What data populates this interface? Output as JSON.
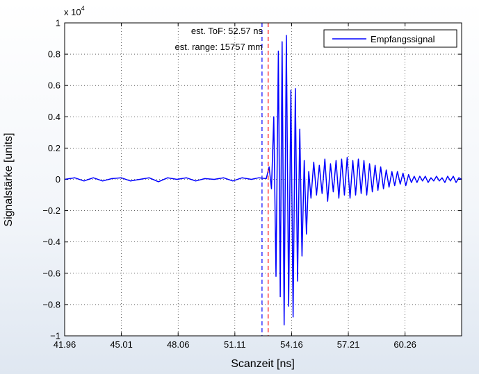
{
  "chart_data": {
    "type": "line",
    "title": "",
    "xlabel": "Scanzeit [ns]",
    "ylabel": "Signalstärke [units]",
    "exponent_label": "x 10",
    "exponent_power": "4",
    "xlim": [
      41.96,
      63.3
    ],
    "ylim": [
      -1,
      1
    ],
    "y_scale_factor": 10000,
    "x_ticks": [
      41.96,
      45.01,
      48.06,
      51.11,
      54.16,
      57.21,
      60.26
    ],
    "x_tick_labels": [
      "41.96",
      "45.01",
      "48.06",
      "51.11",
      "54.16",
      "57.21",
      "60.26"
    ],
    "y_ticks": [
      -1,
      -0.8,
      -0.6,
      -0.4,
      -0.2,
      0,
      0.2,
      0.4,
      0.6,
      0.8,
      1
    ],
    "y_tick_labels": [
      "−1",
      "−0.8",
      "−0.6",
      "−0.4",
      "−0.2",
      "0",
      "0.2",
      "0.4",
      "0.6",
      "0.8",
      "1"
    ],
    "grid": true,
    "legend_position": "top-right",
    "series": [
      {
        "name": "Empfangssignal",
        "color": "#0000ff",
        "x": [
          41.96,
          42.5,
          43.0,
          43.5,
          44.0,
          44.5,
          45.0,
          45.5,
          46.0,
          46.5,
          47.0,
          47.5,
          48.0,
          48.5,
          49.0,
          49.5,
          50.0,
          50.5,
          51.0,
          51.5,
          52.0,
          52.4,
          52.8,
          52.95,
          53.08,
          53.2,
          53.32,
          53.45,
          53.55,
          53.65,
          53.76,
          53.88,
          54.0,
          54.12,
          54.24,
          54.36,
          54.48,
          54.6,
          54.72,
          54.84,
          54.96,
          55.08,
          55.2,
          55.35,
          55.5,
          55.65,
          55.8,
          55.95,
          56.1,
          56.25,
          56.4,
          56.55,
          56.7,
          56.85,
          57.0,
          57.15,
          57.3,
          57.45,
          57.6,
          57.75,
          57.9,
          58.05,
          58.2,
          58.35,
          58.5,
          58.65,
          58.8,
          58.95,
          59.1,
          59.25,
          59.4,
          59.55,
          59.7,
          59.85,
          60.0,
          60.15,
          60.3,
          60.45,
          60.6,
          60.75,
          60.9,
          61.05,
          61.2,
          61.35,
          61.5,
          61.65,
          61.8,
          61.95,
          62.1,
          62.25,
          62.4,
          62.55,
          62.7,
          62.85,
          63.0,
          63.15,
          63.3
        ],
        "values": [
          0.0,
          0.01,
          -0.01,
          0.01,
          -0.01,
          0.005,
          0.01,
          -0.01,
          0.0,
          0.01,
          -0.015,
          0.01,
          0.0,
          0.01,
          -0.01,
          0.005,
          0.0,
          0.01,
          -0.01,
          0.01,
          0.0,
          0.01,
          0.005,
          0.08,
          -0.06,
          0.4,
          -0.62,
          0.82,
          -0.75,
          0.88,
          -0.93,
          0.92,
          -0.81,
          0.57,
          -0.88,
          0.58,
          -0.65,
          0.32,
          -0.49,
          0.12,
          -0.35,
          0.05,
          -0.12,
          0.11,
          -0.1,
          0.09,
          -0.09,
          0.13,
          -0.14,
          0.1,
          -0.08,
          0.12,
          -0.12,
          0.13,
          -0.1,
          0.14,
          -0.12,
          0.12,
          -0.1,
          0.13,
          -0.09,
          0.12,
          -0.1,
          0.1,
          -0.08,
          0.09,
          -0.07,
          0.08,
          -0.06,
          0.06,
          -0.05,
          0.05,
          -0.04,
          0.05,
          -0.03,
          0.04,
          -0.04,
          0.03,
          -0.02,
          0.02,
          -0.02,
          0.02,
          -0.01,
          0.02,
          -0.02,
          0.01,
          -0.01,
          0.02,
          -0.01,
          0.01,
          -0.02,
          0.02,
          -0.01,
          0.02,
          -0.02,
          0.01,
          0.0
        ]
      }
    ],
    "markers": [
      {
        "x": 52.57,
        "color": "#0000ff",
        "style": "dashed"
      },
      {
        "x": 52.9,
        "color": "#ff0000",
        "style": "dashed"
      }
    ],
    "annotations": [
      "est. ToF: 52.57 ns",
      "est. range: 15757 mm"
    ]
  }
}
